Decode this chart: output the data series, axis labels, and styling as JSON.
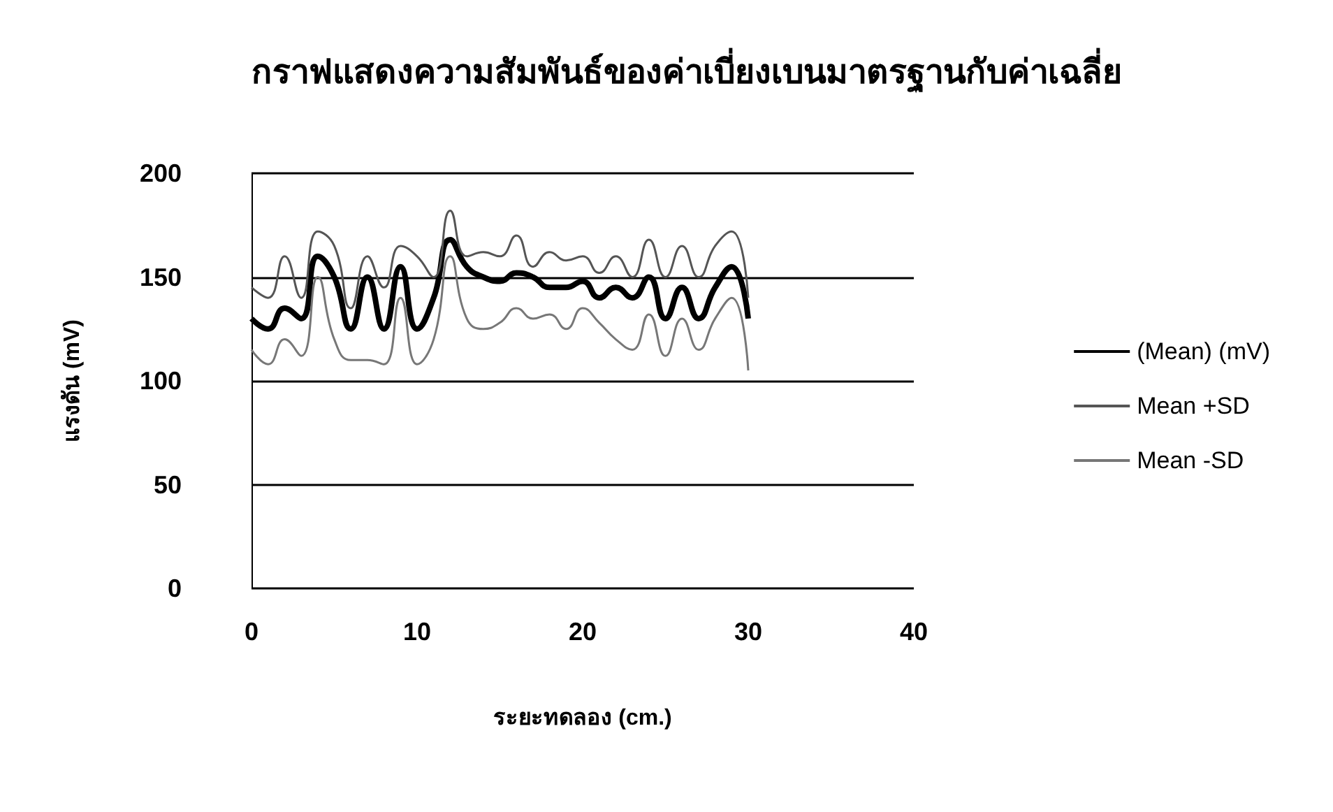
{
  "chart_data": {
    "type": "line",
    "title": "กราฟแสดงความสัมพันธ์ของค่าเบี่ยงเบนมาตรฐานกับค่าเฉลี่ย",
    "xlabel": "ระยะทดลอง (cm.)",
    "ylabel": "แรงดัน (mV)",
    "x": [
      0,
      1,
      2,
      3,
      4,
      5,
      6,
      7,
      8,
      9,
      10,
      11,
      12,
      13,
      14,
      15,
      16,
      17,
      18,
      19,
      20,
      21,
      22,
      23,
      24,
      25,
      26,
      27,
      28,
      29,
      30
    ],
    "series": [
      {
        "name": "(Mean) (mV)",
        "color": "#000000",
        "values": [
          130,
          125,
          135,
          130,
          160,
          150,
          125,
          150,
          125,
          155,
          125,
          140,
          168,
          155,
          150,
          148,
          152,
          150,
          145,
          145,
          148,
          140,
          145,
          140,
          150,
          130,
          145,
          130,
          145,
          155,
          130
        ]
      },
      {
        "name": "Mean +SD",
        "color": "#555555",
        "values": [
          145,
          140,
          160,
          140,
          172,
          165,
          135,
          160,
          145,
          165,
          160,
          150,
          182,
          160,
          162,
          160,
          170,
          155,
          162,
          158,
          160,
          152,
          160,
          150,
          168,
          150,
          165,
          150,
          165,
          172,
          140
        ]
      },
      {
        "name": "Mean -SD",
        "color": "#777777",
        "values": [
          115,
          108,
          120,
          112,
          150,
          120,
          110,
          110,
          108,
          140,
          108,
          120,
          160,
          130,
          125,
          128,
          135,
          130,
          132,
          125,
          135,
          128,
          120,
          115,
          132,
          112,
          130,
          115,
          130,
          140,
          105
        ]
      }
    ],
    "xlim": [
      0,
      40
    ],
    "xticks": [
      0,
      10,
      20,
      30,
      40
    ],
    "ylim": [
      0,
      200
    ],
    "yticks": [
      0,
      50,
      100,
      150,
      200
    ],
    "grid": "y",
    "legend": "right",
    "marker": "none",
    "line_style": "solid"
  }
}
